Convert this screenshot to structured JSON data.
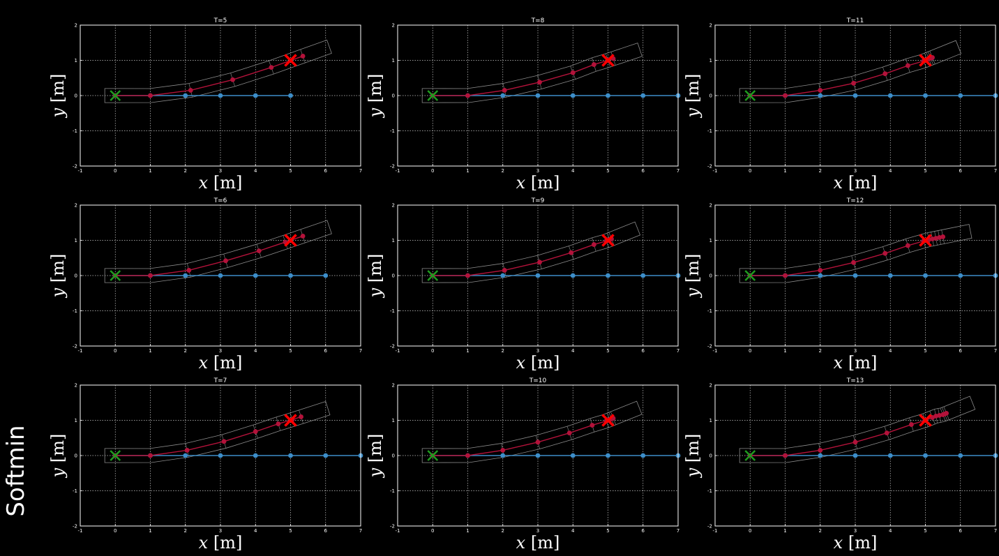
{
  "side_label": "Softmin",
  "colors": {
    "background": "#000000",
    "axes": "#ffffff",
    "grid": "#ffffff",
    "reference": "#3d8ec9",
    "trajectory": "#b3123a",
    "goal": "#ff0000",
    "start": "#1f9a1f",
    "footprint": "#8c8c8c"
  },
  "axis_text": {
    "xlabel_var": "x",
    "xlabel_unit": "[m]",
    "ylabel_var": "y",
    "ylabel_unit": "[m]"
  },
  "chart_data": [
    {
      "type": "line",
      "title": "T=5",
      "xlim": [
        -1,
        7
      ],
      "ylim": [
        -2,
        2
      ],
      "xticks": [
        -1,
        0,
        1,
        2,
        3,
        4,
        5,
        6,
        7
      ],
      "yticks": [
        -2,
        -1,
        0,
        1,
        2
      ],
      "grid": true,
      "start": [
        0,
        0
      ],
      "goal": [
        5,
        1
      ],
      "reference": {
        "x": [
          0,
          1,
          2,
          3,
          4,
          5
        ],
        "y": [
          0,
          0,
          0,
          0,
          0,
          0
        ]
      },
      "trajectory": {
        "x": [
          0,
          1,
          2.15,
          3.35,
          4.45,
          5.35
        ],
        "y": [
          0,
          0,
          0.15,
          0.45,
          0.8,
          1.12
        ]
      }
    },
    {
      "type": "line",
      "title": "T=8",
      "xlim": [
        -1,
        7
      ],
      "ylim": [
        -2,
        2
      ],
      "xticks": [
        -1,
        0,
        1,
        2,
        3,
        4,
        5,
        6,
        7
      ],
      "yticks": [
        -2,
        -1,
        0,
        1,
        2
      ],
      "grid": true,
      "start": [
        0,
        0
      ],
      "goal": [
        5,
        1
      ],
      "reference": {
        "x": [
          0,
          1,
          2,
          3,
          4,
          5,
          6,
          7
        ],
        "y": [
          0,
          0,
          0,
          0,
          0,
          0,
          0,
          0
        ]
      },
      "trajectory": {
        "x": [
          0,
          1,
          2.05,
          3.05,
          4,
          4.6,
          5,
          5.15
        ],
        "y": [
          0,
          0,
          0.15,
          0.38,
          0.65,
          0.88,
          1,
          1.05
        ]
      }
    },
    {
      "type": "line",
      "title": "T=11",
      "xlim": [
        -1,
        7
      ],
      "ylim": [
        -2,
        2
      ],
      "xticks": [
        -1,
        0,
        1,
        2,
        3,
        4,
        5,
        6,
        7
      ],
      "yticks": [
        -2,
        -1,
        0,
        1,
        2
      ],
      "grid": true,
      "start": [
        0,
        0
      ],
      "goal": [
        5,
        1
      ],
      "reference": {
        "x": [
          0,
          1,
          2,
          3,
          4,
          5,
          6,
          7
        ],
        "y": [
          0,
          0,
          0,
          0,
          0,
          0,
          0,
          0
        ]
      },
      "trajectory": {
        "x": [
          0,
          1,
          2,
          2.95,
          3.85,
          4.5,
          4.95,
          5.05,
          5.1,
          5.15,
          5.2
        ],
        "y": [
          0,
          0,
          0.15,
          0.35,
          0.62,
          0.85,
          0.98,
          1.02,
          1.04,
          1.06,
          1.08
        ]
      }
    },
    {
      "type": "line",
      "title": "T=6",
      "xlim": [
        -1,
        7
      ],
      "ylim": [
        -2,
        2
      ],
      "xticks": [
        -1,
        0,
        1,
        2,
        3,
        4,
        5,
        6,
        7
      ],
      "yticks": [
        -2,
        -1,
        0,
        1,
        2
      ],
      "grid": true,
      "start": [
        0,
        0
      ],
      "goal": [
        5,
        1
      ],
      "reference": {
        "x": [
          0,
          1,
          2,
          3,
          4,
          5,
          6
        ],
        "y": [
          0,
          0,
          0,
          0,
          0,
          0,
          0
        ]
      },
      "trajectory": {
        "x": [
          0,
          1,
          2.1,
          3.15,
          4.1,
          4.85,
          5.35
        ],
        "y": [
          0,
          0,
          0.15,
          0.42,
          0.7,
          0.95,
          1.12
        ]
      }
    },
    {
      "type": "line",
      "title": "T=9",
      "xlim": [
        -1,
        7
      ],
      "ylim": [
        -2,
        2
      ],
      "xticks": [
        -1,
        0,
        1,
        2,
        3,
        4,
        5,
        6,
        7
      ],
      "yticks": [
        -2,
        -1,
        0,
        1,
        2
      ],
      "grid": true,
      "start": [
        0,
        0
      ],
      "goal": [
        5,
        1
      ],
      "reference": {
        "x": [
          0,
          1,
          2,
          3,
          4,
          5,
          6,
          7
        ],
        "y": [
          0,
          0,
          0,
          0,
          0,
          0,
          0,
          0
        ]
      },
      "trajectory": {
        "x": [
          0,
          1,
          2.05,
          3.05,
          3.95,
          4.6,
          4.95,
          5.05,
          5.1
        ],
        "y": [
          0,
          0,
          0.15,
          0.38,
          0.65,
          0.88,
          0.98,
          1.02,
          1.04
        ]
      }
    },
    {
      "type": "line",
      "title": "T=12",
      "xlim": [
        -1,
        7
      ],
      "ylim": [
        -2,
        2
      ],
      "xticks": [
        -1,
        0,
        1,
        2,
        3,
        4,
        5,
        6,
        7
      ],
      "yticks": [
        -2,
        -1,
        0,
        1,
        2
      ],
      "grid": true,
      "start": [
        0,
        0
      ],
      "goal": [
        5,
        1
      ],
      "reference": {
        "x": [
          0,
          1,
          2,
          3,
          4,
          5,
          6,
          7
        ],
        "y": [
          0,
          0,
          0,
          0,
          0,
          0,
          0,
          0
        ]
      },
      "trajectory": {
        "x": [
          0,
          1,
          2,
          2.95,
          3.85,
          4.5,
          4.95,
          5.1,
          5.2,
          5.3,
          5.4,
          5.5
        ],
        "y": [
          0,
          0,
          0.15,
          0.37,
          0.63,
          0.85,
          0.98,
          1.02,
          1.04,
          1.06,
          1.08,
          1.1
        ]
      }
    },
    {
      "type": "line",
      "title": "T=7",
      "xlim": [
        -1,
        7
      ],
      "ylim": [
        -2,
        2
      ],
      "xticks": [
        -1,
        0,
        1,
        2,
        3,
        4,
        5,
        6,
        7
      ],
      "yticks": [
        -2,
        -1,
        0,
        1,
        2
      ],
      "grid": true,
      "start": [
        0,
        0
      ],
      "goal": [
        5,
        1
      ],
      "reference": {
        "x": [
          0,
          1,
          2,
          3,
          4,
          5,
          6,
          7
        ],
        "y": [
          0,
          0,
          0,
          0,
          0,
          0,
          0,
          0
        ]
      },
      "trajectory": {
        "x": [
          0,
          1,
          2.05,
          3.1,
          4,
          4.65,
          5.05,
          5.3
        ],
        "y": [
          0,
          0,
          0.15,
          0.4,
          0.68,
          0.9,
          1.02,
          1.1
        ]
      }
    },
    {
      "type": "line",
      "title": "T=10",
      "xlim": [
        -1,
        7
      ],
      "ylim": [
        -2,
        2
      ],
      "xticks": [
        -1,
        0,
        1,
        2,
        3,
        4,
        5,
        6,
        7
      ],
      "yticks": [
        -2,
        -1,
        0,
        1,
        2
      ],
      "grid": true,
      "start": [
        0,
        0
      ],
      "goal": [
        5,
        1
      ],
      "reference": {
        "x": [
          0,
          1,
          2,
          3,
          4,
          5,
          6,
          7
        ],
        "y": [
          0,
          0,
          0,
          0,
          0,
          0,
          0,
          0
        ]
      },
      "trajectory": {
        "x": [
          0,
          1,
          2,
          3,
          3.9,
          4.55,
          4.95,
          5.05,
          5.1,
          5.15
        ],
        "y": [
          0,
          0,
          0.15,
          0.38,
          0.64,
          0.86,
          0.98,
          1.02,
          1.04,
          1.06
        ]
      }
    },
    {
      "type": "line",
      "title": "T=13",
      "xlim": [
        -1,
        7
      ],
      "ylim": [
        -2,
        2
      ],
      "xticks": [
        -1,
        0,
        1,
        2,
        3,
        4,
        5,
        6,
        7
      ],
      "yticks": [
        -2,
        -1,
        0,
        1,
        2
      ],
      "grid": true,
      "start": [
        0,
        0
      ],
      "goal": [
        5,
        1
      ],
      "reference": {
        "x": [
          0,
          1,
          2,
          3,
          4,
          5,
          6,
          7
        ],
        "y": [
          0,
          0,
          0,
          0,
          0,
          0,
          0,
          0
        ]
      },
      "trajectory": {
        "x": [
          0,
          1,
          2,
          3,
          3.9,
          4.6,
          5,
          5.2,
          5.3,
          5.4,
          5.5,
          5.55,
          5.6
        ],
        "y": [
          0,
          0,
          0.15,
          0.38,
          0.64,
          0.88,
          1,
          1.08,
          1.12,
          1.14,
          1.16,
          1.18,
          1.2
        ]
      }
    }
  ]
}
